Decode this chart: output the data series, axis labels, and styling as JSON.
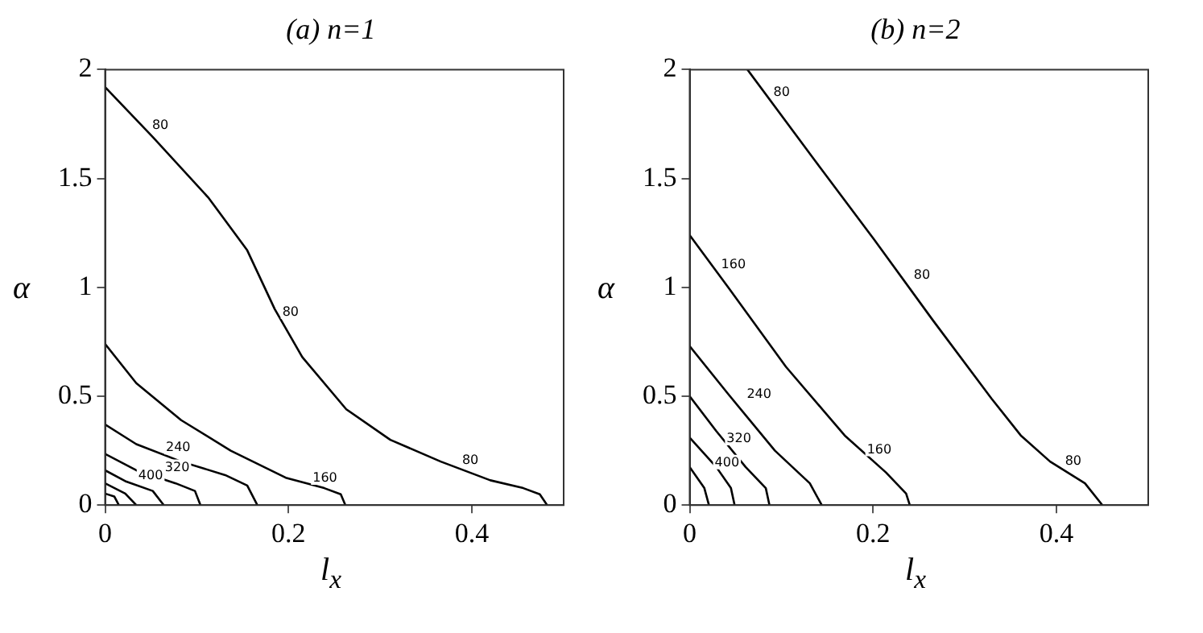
{
  "chart_data": [
    {
      "type": "line",
      "title": "(a) n=1",
      "xlabel": "l$_{x}$",
      "ylabel": "α",
      "xlim": [
        0,
        0.5
      ],
      "ylim": [
        0,
        2
      ],
      "xticks": [
        0,
        0.2,
        0.4
      ],
      "yticks": [
        0,
        0.5,
        1,
        1.5,
        2
      ],
      "grid": false,
      "legend": false,
      "marker": "none",
      "line_style": "solid",
      "series": [
        {
          "color": "#000000",
          "x": [
            0,
            0.052,
            0.113,
            0.155,
            0.185,
            0.215,
            0.263,
            0.311,
            0.366,
            0.42,
            0.456,
            0.474,
            0.482
          ],
          "values": [
            1.92,
            1.69,
            1.41,
            1.17,
            0.9,
            0.68,
            0.44,
            0.3,
            0.2,
            0.114,
            0.078,
            0.05,
            0
          ]
        },
        {
          "color": "#000000",
          "x": [
            0,
            0.034,
            0.083,
            0.137,
            0.197,
            0.239,
            0.257,
            0.262
          ],
          "values": [
            0.74,
            0.56,
            0.39,
            0.25,
            0.126,
            0.078,
            0.05,
            0
          ]
        },
        {
          "color": "#000000",
          "x": [
            0,
            0.034,
            0.083,
            0.131,
            0.155,
            0.166
          ],
          "values": [
            0.37,
            0.28,
            0.2,
            0.138,
            0.09,
            0
          ]
        },
        {
          "color": "#000000",
          "x": [
            0,
            0.034,
            0.077,
            0.098,
            0.104
          ],
          "values": [
            0.235,
            0.16,
            0.1,
            0.065,
            0
          ]
        },
        {
          "color": "#000000",
          "x": [
            0,
            0.022,
            0.052,
            0.064
          ],
          "values": [
            0.16,
            0.11,
            0.065,
            0
          ]
        },
        {
          "color": "#000000",
          "x": [
            0,
            0.022,
            0.034
          ],
          "values": [
            0.1,
            0.053,
            0
          ]
        },
        {
          "color": "#000000",
          "x": [
            0,
            0.01,
            0.015
          ],
          "values": [
            0.053,
            0.04,
            0
          ]
        }
      ],
      "annotations": [
        {
          "text": "80",
          "x": 0.046,
          "y": 1.7
        },
        {
          "text": "80",
          "x": 0.188,
          "y": 0.84
        },
        {
          "text": "80",
          "x": 0.384,
          "y": 0.16
        },
        {
          "text": "160",
          "x": 0.221,
          "y": 0.078
        },
        {
          "text": "240",
          "x": 0.061,
          "y": 0.218
        },
        {
          "text": "320",
          "x": 0.06,
          "y": 0.128
        },
        {
          "text": "400",
          "x": 0.031,
          "y": 0.09
        }
      ]
    },
    {
      "type": "line",
      "title": "(b) n=2",
      "xlabel": "l$_{x}$",
      "ylabel": "α",
      "xlim": [
        0,
        0.5
      ],
      "ylim": [
        0,
        2
      ],
      "xticks": [
        0,
        0.2,
        0.4
      ],
      "yticks": [
        0,
        0.5,
        1,
        1.5,
        2
      ],
      "grid": false,
      "legend": false,
      "marker": "none",
      "line_style": "solid",
      "series": [
        {
          "color": "#000000",
          "x": [
            0.063,
            0.137,
            0.201,
            0.265,
            0.329,
            0.361,
            0.393,
            0.431,
            0.45
          ],
          "values": [
            2,
            1.58,
            1.22,
            0.85,
            0.49,
            0.32,
            0.2,
            0.1,
            0
          ]
        },
        {
          "color": "#000000",
          "x": [
            0,
            0.042,
            0.105,
            0.169,
            0.214,
            0.236,
            0.24
          ],
          "values": [
            1.24,
            1.0,
            0.635,
            0.32,
            0.15,
            0.053,
            0
          ]
        },
        {
          "color": "#000000",
          "x": [
            0,
            0.042,
            0.093,
            0.131,
            0.144
          ],
          "values": [
            0.73,
            0.51,
            0.25,
            0.1,
            0
          ]
        },
        {
          "color": "#000000",
          "x": [
            0,
            0.029,
            0.061,
            0.083,
            0.087
          ],
          "values": [
            0.5,
            0.34,
            0.175,
            0.078,
            0
          ]
        },
        {
          "color": "#000000",
          "x": [
            0,
            0.029,
            0.045,
            0.049
          ],
          "values": [
            0.31,
            0.175,
            0.078,
            0
          ]
        },
        {
          "color": "#000000",
          "x": [
            0,
            0.016,
            0.021
          ],
          "values": [
            0.175,
            0.078,
            0
          ]
        }
      ],
      "annotations": [
        {
          "text": "80",
          "x": 0.086,
          "y": 1.85
        },
        {
          "text": "80",
          "x": 0.239,
          "y": 1.01
        },
        {
          "text": "80",
          "x": 0.404,
          "y": 0.155
        },
        {
          "text": "160",
          "x": 0.029,
          "y": 1.06
        },
        {
          "text": "160",
          "x": 0.188,
          "y": 0.21
        },
        {
          "text": "240",
          "x": 0.057,
          "y": 0.465
        },
        {
          "text": "320",
          "x": 0.035,
          "y": 0.26
        },
        {
          "text": "400",
          "x": 0.022,
          "y": 0.15
        }
      ]
    }
  ]
}
